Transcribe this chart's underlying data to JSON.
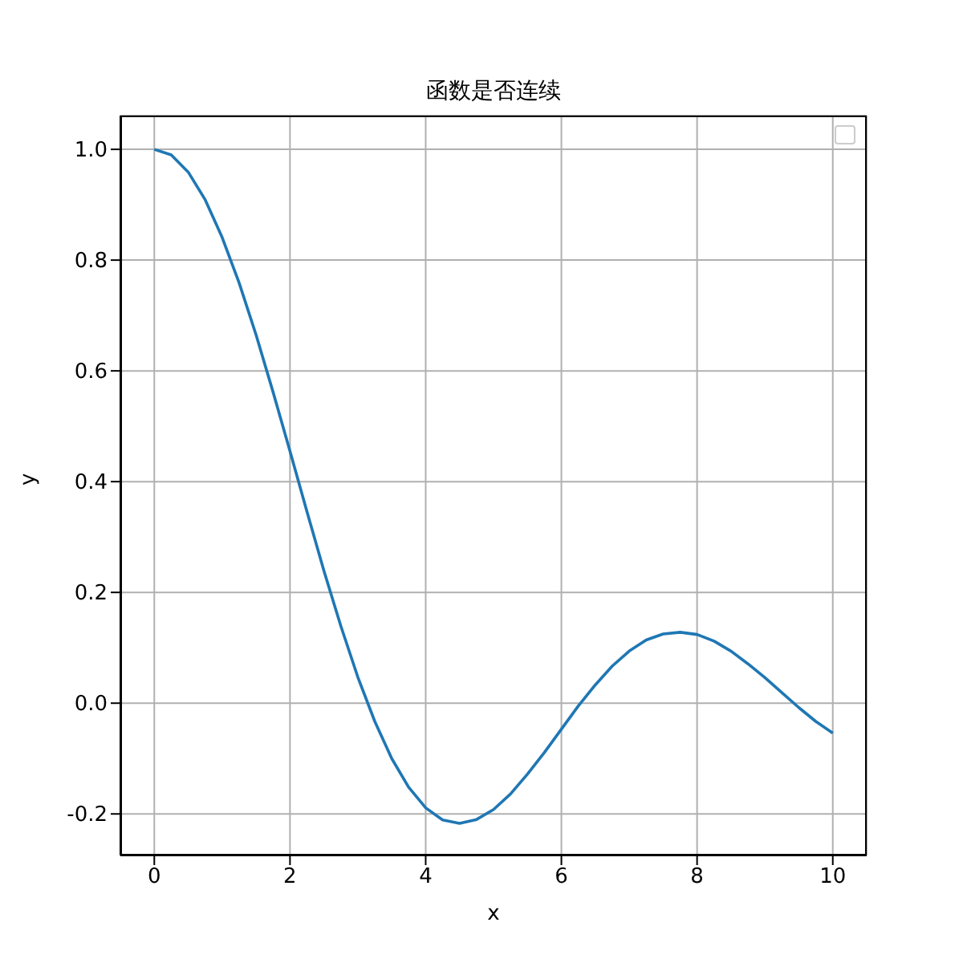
{
  "chart_data": {
    "type": "line",
    "title": "函数是否连续",
    "xlabel": "x",
    "ylabel": "y",
    "x": [
      0,
      0.25,
      0.5,
      0.75,
      1,
      1.25,
      1.5,
      1.75,
      2,
      2.25,
      2.5,
      2.75,
      3,
      3.25,
      3.5,
      3.75,
      4,
      4.25,
      4.5,
      4.75,
      5,
      5.25,
      5.5,
      5.75,
      6,
      6.25,
      6.5,
      6.75,
      7,
      7.25,
      7.5,
      7.75,
      8,
      8.25,
      8.5,
      8.75,
      9,
      9.25,
      9.5,
      9.75,
      10
    ],
    "series": [
      {
        "color": "#1f77b4",
        "values": [
          1,
          0.99,
          0.959,
          0.909,
          0.841,
          0.759,
          0.665,
          0.562,
          0.455,
          0.346,
          0.239,
          0.139,
          0.047,
          -0.033,
          -0.1,
          -0.152,
          -0.189,
          -0.211,
          -0.217,
          -0.21,
          -0.192,
          -0.164,
          -0.128,
          -0.089,
          -0.047,
          -0.005,
          0.033,
          0.067,
          0.094,
          0.114,
          0.125,
          0.128,
          0.124,
          0.112,
          0.094,
          0.071,
          0.046,
          0.019,
          -0.008,
          -0.033,
          -0.054
        ]
      }
    ],
    "xlim": [
      -0.5,
      10.5
    ],
    "ylim": [
      -0.275,
      1.061
    ],
    "xticks": [
      0,
      2,
      4,
      6,
      8,
      10
    ],
    "yticks": [
      {
        "value": -0.2,
        "label": "-0.2"
      },
      {
        "value": 0,
        "label": "0.0"
      },
      {
        "value": 0.2,
        "label": "0.2"
      },
      {
        "value": 0.4,
        "label": "0.4"
      },
      {
        "value": 0.6,
        "label": "0.6"
      },
      {
        "value": 0.8,
        "label": "0.8"
      },
      {
        "value": 1,
        "label": "1.0"
      }
    ],
    "grid": true,
    "marker": "none",
    "line_style": "solid"
  }
}
